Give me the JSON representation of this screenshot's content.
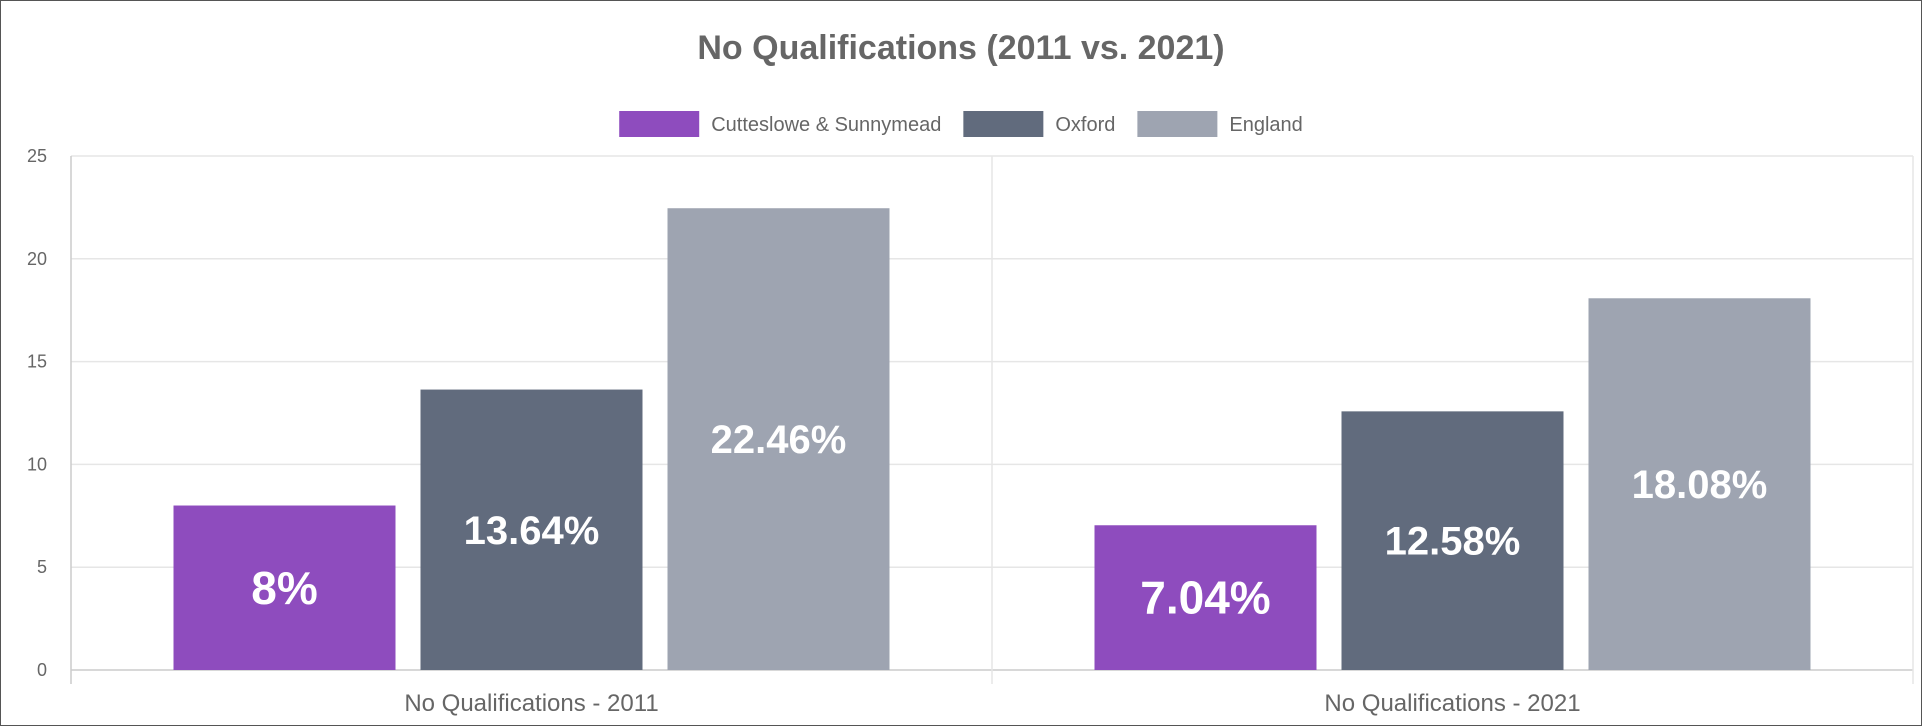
{
  "chart_data": {
    "type": "bar",
    "title": "No Qualifications (2011 vs. 2021)",
    "categories": [
      "No Qualifications - 2011",
      "No Qualifications - 2021"
    ],
    "series": [
      {
        "name": "Cutteslowe & Sunnymead",
        "color": "#8e4cbe",
        "values": [
          8,
          7.04
        ],
        "labels": [
          "8%",
          "7.04%"
        ]
      },
      {
        "name": "Oxford",
        "color": "#616b7d",
        "values": [
          13.64,
          12.58
        ],
        "labels": [
          "13.64%",
          "12.58%"
        ]
      },
      {
        "name": "England",
        "color": "#9ea4b1",
        "values": [
          22.46,
          18.08
        ],
        "labels": [
          "22.46%",
          "18.08%"
        ]
      }
    ],
    "ylim": [
      0,
      25
    ],
    "yticks": [
      0,
      5,
      10,
      15,
      20,
      25
    ],
    "ytick_labels": [
      "0",
      "5",
      "10",
      "15",
      "20",
      "25"
    ],
    "grid": true,
    "legend_position": "top"
  }
}
